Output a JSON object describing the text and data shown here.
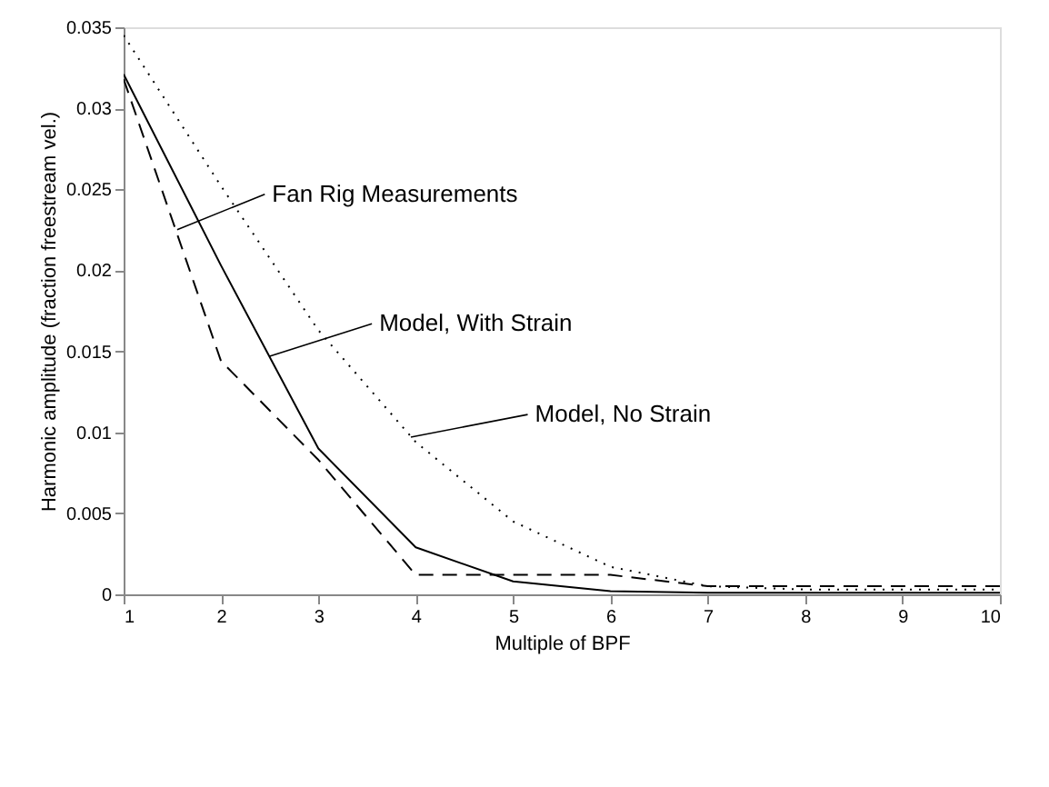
{
  "chart_data": {
    "type": "line",
    "xlabel": "Multiple of BPF",
    "ylabel": "Harmonic amplitude (fraction freestream vel.)",
    "x": [
      1,
      2,
      3,
      4,
      5,
      6,
      7,
      8,
      9,
      10
    ],
    "series": [
      {
        "color": "#000000",
        "line_style": "dashed",
        "values": [
          0.0318,
          0.0144,
          0.0083,
          0.0012,
          0.0012,
          0.0012,
          0.0005,
          0.0005,
          0.0005,
          0.0005
        ]
      },
      {
        "color": "#000000",
        "line_style": "solid",
        "values": [
          0.0321,
          0.0203,
          0.009,
          0.0029,
          0.0008,
          0.0002,
          0.0001,
          0.0001,
          0.0001,
          0.0001
        ]
      },
      {
        "color": "#000000",
        "line_style": "dotted",
        "values": [
          0.0345,
          0.0252,
          0.0163,
          0.0094,
          0.0045,
          0.0017,
          0.0005,
          0.0003,
          0.0003,
          0.0003
        ]
      }
    ],
    "annotations": [
      {
        "text": "Fan Rig Measurements",
        "x": 1.55,
        "y": 0.0225
      },
      {
        "text": "Model, With Strain",
        "x": 2.5,
        "y": 0.0147
      },
      {
        "text": "Model, No Strain",
        "x": 3.95,
        "y": 0.0097
      }
    ],
    "xlim": [
      1,
      10
    ],
    "xticks": [
      1,
      2,
      3,
      4,
      5,
      6,
      7,
      8,
      9,
      10
    ],
    "ylim": [
      0,
      0.035
    ],
    "yticks": [
      0,
      0.005,
      0.01,
      0.015,
      0.02,
      0.025,
      0.03,
      0.035
    ],
    "grid": false,
    "marker": "none"
  }
}
